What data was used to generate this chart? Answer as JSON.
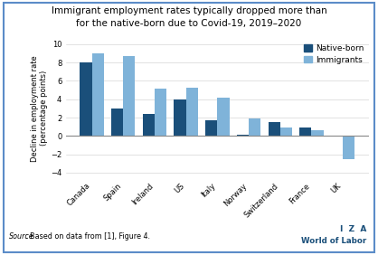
{
  "title_line1": "Immigrant employment rates typically dropped more than",
  "title_line2": "for the native-born due to Covid-19, 2019–2020",
  "categories": [
    "Canada",
    "Spain",
    "Ireland",
    "US",
    "Italy",
    "Norway",
    "Switzerland",
    "France",
    "UK"
  ],
  "native_born": [
    8.0,
    3.0,
    2.4,
    4.0,
    1.7,
    0.15,
    1.5,
    0.9,
    0.0
  ],
  "immigrants": [
    9.0,
    8.7,
    5.2,
    5.3,
    4.2,
    1.9,
    0.9,
    0.65,
    -2.5
  ],
  "native_color": "#1a4f7a",
  "immigrant_color": "#7fb3d9",
  "ylabel": "Decline in employment rate\n(percentage points)",
  "ylim": [
    -4.5,
    10.5
  ],
  "yticks": [
    -4,
    -2,
    0,
    2,
    4,
    6,
    8,
    10
  ],
  "source_text_italic": "Source",
  "source_text_normal": ": Based on data from [1], Figure 4.",
  "iza_line1": "I  Z  A",
  "iza_line2": "World of Labor",
  "background_color": "#ffffff",
  "border_color": "#5b8cc8",
  "bar_width": 0.38
}
